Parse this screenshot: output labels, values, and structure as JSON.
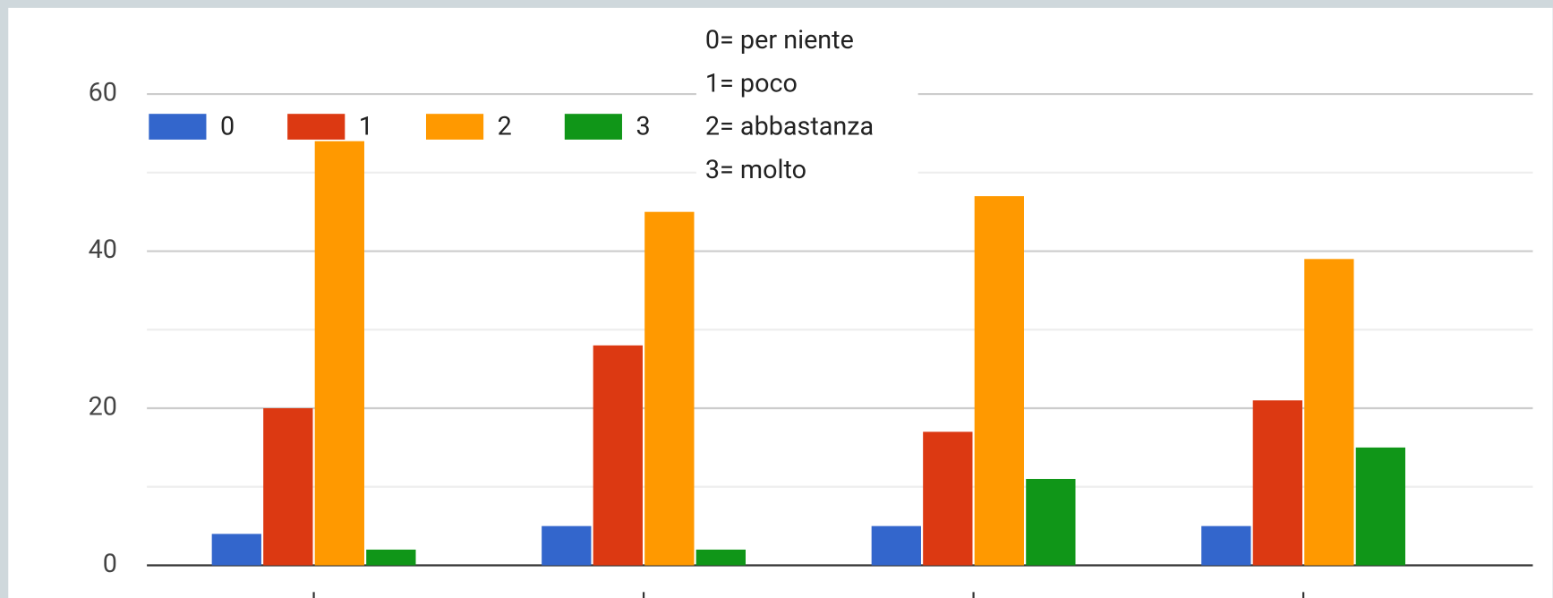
{
  "chart_data": {
    "type": "bar",
    "categories": [
      null,
      null,
      null,
      null
    ],
    "series": [
      {
        "name": "0",
        "color": "#3366cc",
        "values": [
          4,
          5,
          5,
          5
        ]
      },
      {
        "name": "1",
        "color": "#dc3912",
        "values": [
          20,
          28,
          17,
          21
        ]
      },
      {
        "name": "2",
        "color": "#ff9900",
        "values": [
          54,
          45,
          47,
          39
        ]
      },
      {
        "name": "3",
        "color": "#109618",
        "values": [
          2,
          2,
          11,
          15
        ]
      }
    ],
    "ylim": [
      0,
      60
    ],
    "yticks": [
      0,
      20,
      40,
      60
    ],
    "minor_yticks": [
      10,
      30,
      50
    ],
    "grid": true,
    "legend": "top-left",
    "annotations": [
      "0= per niente",
      "1= poco",
      "2= abbastanza",
      "3= molto"
    ]
  }
}
